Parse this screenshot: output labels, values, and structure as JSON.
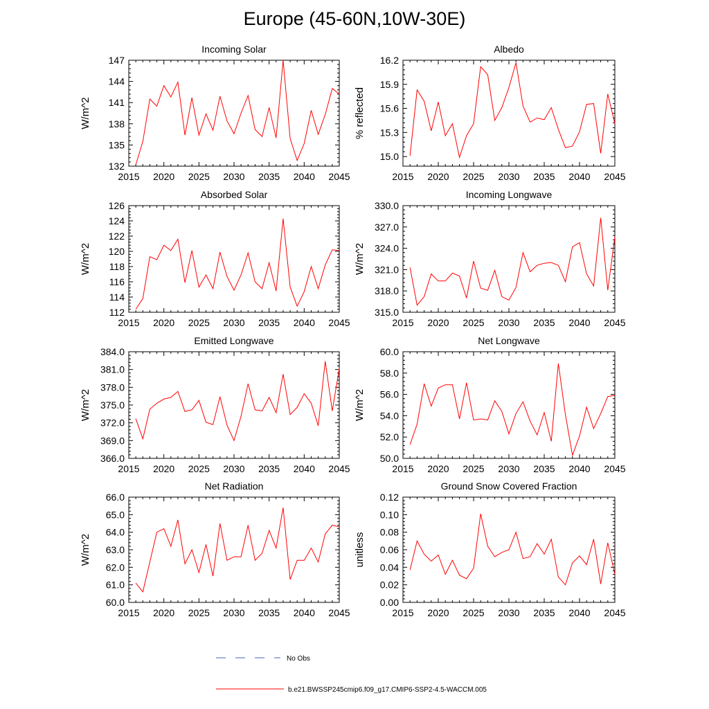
{
  "figure": {
    "title": "Europe (45-60N,10W-30E)",
    "line_color": "#ff0000",
    "obs_color": "#4a5fc1",
    "legend": {
      "obs_label": "No Obs",
      "model_label": "b.e21.BWSSP245cmip6.f09_g17.CMIP6-SSP2-4.5-WACCM.005"
    }
  },
  "chart_data": [
    {
      "type": "line",
      "title": "Incoming Solar",
      "xlabel": "",
      "ylabel": "W/m^2",
      "xlim": [
        2015,
        2045
      ],
      "ylim": [
        132,
        147
      ],
      "xticks": [
        2015,
        2020,
        2025,
        2030,
        2035,
        2040,
        2045
      ],
      "yticks": [
        132,
        135,
        138,
        141,
        144,
        147
      ],
      "ytick_labels": [
        "132",
        "135",
        "138",
        "141",
        "144",
        "147"
      ],
      "x": [
        2016,
        2017,
        2018,
        2019,
        2020,
        2021,
        2022,
        2023,
        2024,
        2025,
        2026,
        2027,
        2028,
        2029,
        2030,
        2031,
        2032,
        2033,
        2034,
        2035,
        2036,
        2037,
        2038,
        2039,
        2040,
        2041,
        2042,
        2043,
        2044,
        2045
      ],
      "series": [
        {
          "name": "b.e21.BWSSP245cmip6.f09_g17.CMIP6-SSP2-4.5-WACCM.005",
          "values": [
            132.2,
            135.5,
            141.5,
            140.5,
            143.4,
            141.8,
            143.9,
            136.4,
            141.7,
            136.4,
            139.4,
            137.1,
            141.9,
            138.4,
            136.6,
            139.5,
            142.0,
            137.2,
            136.2,
            140.3,
            136.0,
            147.0,
            135.9,
            132.8,
            135.2,
            139.9,
            136.5,
            139.3,
            143.0,
            142.2
          ]
        }
      ]
    },
    {
      "type": "line",
      "title": "Albedo",
      "xlabel": "",
      "ylabel": "% reflected",
      "xlim": [
        2015,
        2045
      ],
      "ylim": [
        14.88,
        16.2
      ],
      "xticks": [
        2015,
        2020,
        2025,
        2030,
        2035,
        2040,
        2045
      ],
      "yticks": [
        15.0,
        15.3,
        15.6,
        15.9,
        16.2
      ],
      "ytick_labels": [
        "15.0",
        "15.3",
        "15.6",
        "15.9",
        "16.2"
      ],
      "x": [
        2016,
        2017,
        2018,
        2019,
        2020,
        2021,
        2022,
        2023,
        2024,
        2025,
        2026,
        2027,
        2028,
        2029,
        2030,
        2031,
        2032,
        2033,
        2034,
        2035,
        2036,
        2037,
        2038,
        2039,
        2040,
        2041,
        2042,
        2043,
        2044,
        2045
      ],
      "series": [
        {
          "name": "b.e21.BWSSP245cmip6.f09_g17.CMIP6-SSP2-4.5-WACCM.005",
          "values": [
            15.01,
            15.83,
            15.69,
            15.32,
            15.68,
            15.26,
            15.41,
            14.99,
            15.26,
            15.41,
            16.12,
            16.02,
            15.45,
            15.61,
            15.86,
            16.17,
            15.63,
            15.43,
            15.48,
            15.46,
            15.61,
            15.34,
            15.11,
            15.13,
            15.31,
            15.65,
            15.66,
            15.04,
            15.78,
            15.41
          ]
        }
      ]
    },
    {
      "type": "line",
      "title": "Absorbed Solar",
      "xlabel": "",
      "ylabel": "W/m^2",
      "xlim": [
        2015,
        2045
      ],
      "ylim": [
        112,
        126
      ],
      "xticks": [
        2015,
        2020,
        2025,
        2030,
        2035,
        2040,
        2045
      ],
      "yticks": [
        112,
        114,
        116,
        118,
        120,
        122,
        124,
        126
      ],
      "ytick_labels": [
        "112",
        "114",
        "116",
        "118",
        "120",
        "122",
        "124",
        "126"
      ],
      "x": [
        2016,
        2017,
        2018,
        2019,
        2020,
        2021,
        2022,
        2023,
        2024,
        2025,
        2026,
        2027,
        2028,
        2029,
        2030,
        2031,
        2032,
        2033,
        2034,
        2035,
        2036,
        2037,
        2038,
        2039,
        2040,
        2041,
        2042,
        2043,
        2044,
        2045
      ],
      "series": [
        {
          "name": "b.e21.BWSSP245cmip6.f09_g17.CMIP6-SSP2-4.5-WACCM.005",
          "values": [
            112.4,
            113.8,
            119.3,
            118.9,
            120.8,
            120.1,
            121.6,
            115.9,
            120.1,
            115.3,
            116.9,
            115.1,
            119.9,
            116.7,
            114.9,
            116.9,
            119.8,
            116.0,
            115.1,
            118.5,
            114.8,
            124.3,
            115.3,
            112.8,
            114.7,
            118.0,
            115.1,
            118.2,
            120.2,
            120.1
          ]
        }
      ]
    },
    {
      "type": "line",
      "title": "Incoming Longwave",
      "xlabel": "",
      "ylabel": "W/m^2",
      "xlim": [
        2015,
        2045
      ],
      "ylim": [
        315,
        330
      ],
      "xticks": [
        2015,
        2020,
        2025,
        2030,
        2035,
        2040,
        2045
      ],
      "yticks": [
        315,
        318,
        321,
        324,
        327,
        330
      ],
      "ytick_labels": [
        "315.0",
        "318.0",
        "321.0",
        "324.0",
        "327.0",
        "330.0"
      ],
      "x": [
        2016,
        2017,
        2018,
        2019,
        2020,
        2021,
        2022,
        2023,
        2024,
        2025,
        2026,
        2027,
        2028,
        2029,
        2030,
        2031,
        2032,
        2033,
        2034,
        2035,
        2036,
        2037,
        2038,
        2039,
        2040,
        2041,
        2042,
        2043,
        2044,
        2045
      ],
      "series": [
        {
          "name": "b.e21.BWSSP245cmip6.f09_g17.CMIP6-SSP2-4.5-WACCM.005",
          "values": [
            321.3,
            316.0,
            317.2,
            320.4,
            319.4,
            319.4,
            320.5,
            320.1,
            317.0,
            322.2,
            318.4,
            318.1,
            320.9,
            317.2,
            316.7,
            318.5,
            323.4,
            320.7,
            321.6,
            321.9,
            322.0,
            321.6,
            319.3,
            324.2,
            324.8,
            320.4,
            318.7,
            328.3,
            318.1,
            325.6
          ]
        }
      ]
    },
    {
      "type": "line",
      "title": "Emitted Longwave",
      "xlabel": "",
      "ylabel": "W/m^2",
      "xlim": [
        2015,
        2045
      ],
      "ylim": [
        366,
        384
      ],
      "xticks": [
        2015,
        2020,
        2025,
        2030,
        2035,
        2040,
        2045
      ],
      "yticks": [
        366,
        369,
        372,
        375,
        378,
        381,
        384
      ],
      "ytick_labels": [
        "366.0",
        "369.0",
        "372.0",
        "375.0",
        "378.0",
        "381.0",
        "384.0"
      ],
      "x": [
        2016,
        2017,
        2018,
        2019,
        2020,
        2021,
        2022,
        2023,
        2024,
        2025,
        2026,
        2027,
        2028,
        2029,
        2030,
        2031,
        2032,
        2033,
        2034,
        2035,
        2036,
        2037,
        2038,
        2039,
        2040,
        2041,
        2042,
        2043,
        2044,
        2045
      ],
      "series": [
        {
          "name": "b.e21.BWSSP245cmip6.f09_g17.CMIP6-SSP2-4.5-WACCM.005",
          "values": [
            372.7,
            369.3,
            374.3,
            375.3,
            376.0,
            376.3,
            377.3,
            373.9,
            374.2,
            375.8,
            372.1,
            371.7,
            376.4,
            371.6,
            369.0,
            373.1,
            378.6,
            374.2,
            374.0,
            376.3,
            373.7,
            380.2,
            373.4,
            374.6,
            376.9,
            375.3,
            371.5,
            382.4,
            374.0,
            381.2
          ]
        }
      ]
    },
    {
      "type": "line",
      "title": "Net Longwave",
      "xlabel": "",
      "ylabel": "W/m^2",
      "xlim": [
        2015,
        2045
      ],
      "ylim": [
        50,
        60
      ],
      "xticks": [
        2015,
        2020,
        2025,
        2030,
        2035,
        2040,
        2045
      ],
      "yticks": [
        50,
        52,
        54,
        56,
        58,
        60
      ],
      "ytick_labels": [
        "50.0",
        "52.0",
        "54.0",
        "56.0",
        "58.0",
        "60.0"
      ],
      "x": [
        2016,
        2017,
        2018,
        2019,
        2020,
        2021,
        2022,
        2023,
        2024,
        2025,
        2026,
        2027,
        2028,
        2029,
        2030,
        2031,
        2032,
        2033,
        2034,
        2035,
        2036,
        2037,
        2038,
        2039,
        2040,
        2041,
        2042,
        2043,
        2044,
        2045
      ],
      "series": [
        {
          "name": "b.e21.BWSSP245cmip6.f09_g17.CMIP6-SSP2-4.5-WACCM.005",
          "values": [
            51.3,
            53.2,
            57.0,
            54.9,
            56.6,
            56.9,
            56.9,
            53.7,
            57.1,
            53.6,
            53.7,
            53.6,
            55.4,
            54.4,
            52.3,
            54.2,
            55.3,
            53.5,
            52.2,
            54.3,
            51.6,
            58.9,
            54.1,
            50.3,
            52.1,
            54.8,
            52.8,
            54.2,
            55.8,
            55.9
          ]
        }
      ]
    },
    {
      "type": "line",
      "title": "Net Radiation",
      "xlabel": "",
      "ylabel": "W/m^2",
      "xlim": [
        2015,
        2045
      ],
      "ylim": [
        60,
        66
      ],
      "xticks": [
        2015,
        2020,
        2025,
        2030,
        2035,
        2040,
        2045
      ],
      "yticks": [
        60,
        61,
        62,
        63,
        64,
        65,
        66
      ],
      "ytick_labels": [
        "60.0",
        "61.0",
        "62.0",
        "63.0",
        "64.0",
        "65.0",
        "66.0"
      ],
      "x": [
        2016,
        2017,
        2018,
        2019,
        2020,
        2021,
        2022,
        2023,
        2024,
        2025,
        2026,
        2027,
        2028,
        2029,
        2030,
        2031,
        2032,
        2033,
        2034,
        2035,
        2036,
        2037,
        2038,
        2039,
        2040,
        2041,
        2042,
        2043,
        2044,
        2045
      ],
      "series": [
        {
          "name": "b.e21.BWSSP245cmip6.f09_g17.CMIP6-SSP2-4.5-WACCM.005",
          "values": [
            61.1,
            60.6,
            62.3,
            64.0,
            64.2,
            63.2,
            64.7,
            62.2,
            63.0,
            61.7,
            63.3,
            61.5,
            64.5,
            62.4,
            62.6,
            62.6,
            64.4,
            62.4,
            62.8,
            64.1,
            63.1,
            65.4,
            61.3,
            62.4,
            62.4,
            63.1,
            62.3,
            63.9,
            64.4,
            64.3
          ]
        }
      ]
    },
    {
      "type": "line",
      "title": "Ground Snow Covered Fraction",
      "xlabel": "",
      "ylabel": "unitless",
      "xlim": [
        2015,
        2045
      ],
      "ylim": [
        0,
        0.12
      ],
      "xticks": [
        2015,
        2020,
        2025,
        2030,
        2035,
        2040,
        2045
      ],
      "yticks": [
        0,
        0.02,
        0.04,
        0.06,
        0.08,
        0.1,
        0.12
      ],
      "ytick_labels": [
        "0.00",
        "0.02",
        "0.04",
        "0.06",
        "0.08",
        "0.10",
        "0.12"
      ],
      "x": [
        2016,
        2017,
        2018,
        2019,
        2020,
        2021,
        2022,
        2023,
        2024,
        2025,
        2026,
        2027,
        2028,
        2029,
        2030,
        2031,
        2032,
        2033,
        2034,
        2035,
        2036,
        2037,
        2038,
        2039,
        2040,
        2041,
        2042,
        2043,
        2044,
        2045
      ],
      "series": [
        {
          "name": "b.e21.BWSSP245cmip6.f09_g17.CMIP6-SSP2-4.5-WACCM.005",
          "values": [
            0.037,
            0.07,
            0.055,
            0.047,
            0.054,
            0.032,
            0.048,
            0.031,
            0.027,
            0.039,
            0.101,
            0.064,
            0.052,
            0.057,
            0.06,
            0.08,
            0.05,
            0.052,
            0.067,
            0.055,
            0.072,
            0.029,
            0.02,
            0.045,
            0.053,
            0.043,
            0.072,
            0.021,
            0.068,
            0.032
          ]
        }
      ]
    }
  ]
}
